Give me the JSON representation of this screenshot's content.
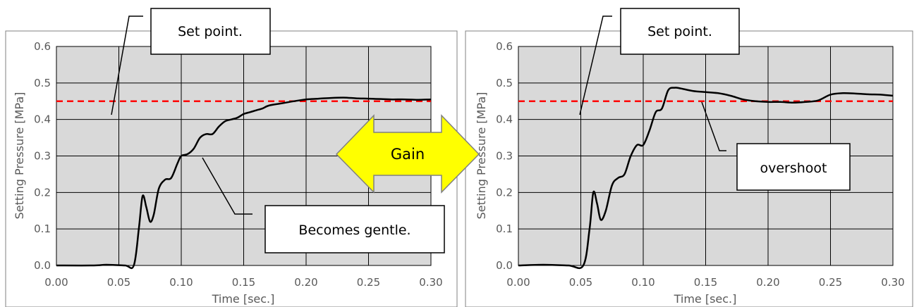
{
  "arrow": {
    "label": "Gain"
  },
  "chart_data": [
    {
      "type": "line",
      "xlabel": "Time [sec.]",
      "ylabel": "Setting Pressure [MPa]",
      "xlim": [
        0.0,
        0.3
      ],
      "ylim": [
        0.0,
        0.6
      ],
      "x_ticks": [
        "0.00",
        "0.05",
        "0.10",
        "0.15",
        "0.20",
        "0.25",
        "0.30"
      ],
      "y_ticks": [
        "0.0",
        "0.1",
        "0.2",
        "0.3",
        "0.4",
        "0.5",
        "0.6"
      ],
      "grid": true,
      "plot_background": "#d9d9d9",
      "setpoint": {
        "y": 0.45,
        "color": "#ff0000",
        "style": "dashed"
      },
      "series": [
        {
          "color": "#000000",
          "points": [
            [
              0.0,
              0.0
            ],
            [
              0.03,
              0.0
            ],
            [
              0.04,
              0.002
            ],
            [
              0.055,
              0.0
            ],
            [
              0.062,
              0.0
            ],
            [
              0.066,
              0.1
            ],
            [
              0.069,
              0.19
            ],
            [
              0.072,
              0.16
            ],
            [
              0.075,
              0.12
            ],
            [
              0.078,
              0.14
            ],
            [
              0.082,
              0.21
            ],
            [
              0.087,
              0.235
            ],
            [
              0.092,
              0.24
            ],
            [
              0.097,
              0.28
            ],
            [
              0.1,
              0.3
            ],
            [
              0.105,
              0.305
            ],
            [
              0.11,
              0.32
            ],
            [
              0.115,
              0.35
            ],
            [
              0.12,
              0.36
            ],
            [
              0.125,
              0.36
            ],
            [
              0.13,
              0.38
            ],
            [
              0.135,
              0.395
            ],
            [
              0.14,
              0.4
            ],
            [
              0.145,
              0.405
            ],
            [
              0.15,
              0.415
            ],
            [
              0.155,
              0.42
            ],
            [
              0.16,
              0.425
            ],
            [
              0.165,
              0.43
            ],
            [
              0.17,
              0.438
            ],
            [
              0.18,
              0.444
            ],
            [
              0.19,
              0.45
            ],
            [
              0.2,
              0.455
            ],
            [
              0.21,
              0.457
            ],
            [
              0.22,
              0.459
            ],
            [
              0.23,
              0.46
            ],
            [
              0.24,
              0.458
            ],
            [
              0.25,
              0.457
            ],
            [
              0.26,
              0.456
            ],
            [
              0.27,
              0.455
            ],
            [
              0.28,
              0.455
            ],
            [
              0.29,
              0.454
            ],
            [
              0.3,
              0.455
            ]
          ]
        }
      ],
      "annotations": [
        {
          "text": "Set point.",
          "target": [
            0.03,
            0.45
          ]
        },
        {
          "text": "Becomes gentle.",
          "target": [
            0.105,
            0.3
          ]
        }
      ]
    },
    {
      "type": "line",
      "xlabel": "Time [sec.]",
      "ylabel": "Setting Pressure [MPa]",
      "xlim": [
        0.0,
        0.3
      ],
      "ylim": [
        0.0,
        0.6
      ],
      "x_ticks": [
        "0.00",
        "0.05",
        "0.10",
        "0.15",
        "0.20",
        "0.25",
        "0.30"
      ],
      "y_ticks": [
        "0.0",
        "0.1",
        "0.2",
        "0.3",
        "0.4",
        "0.5",
        "0.6"
      ],
      "grid": true,
      "plot_background": "#d9d9d9",
      "setpoint": {
        "y": 0.45,
        "color": "#ff0000",
        "style": "dashed"
      },
      "series": [
        {
          "color": "#000000",
          "points": [
            [
              0.0,
              0.0
            ],
            [
              0.02,
              0.002
            ],
            [
              0.04,
              0.0
            ],
            [
              0.052,
              0.0
            ],
            [
              0.057,
              0.1
            ],
            [
              0.06,
              0.2
            ],
            [
              0.063,
              0.17
            ],
            [
              0.066,
              0.125
            ],
            [
              0.07,
              0.15
            ],
            [
              0.075,
              0.22
            ],
            [
              0.08,
              0.24
            ],
            [
              0.085,
              0.25
            ],
            [
              0.09,
              0.3
            ],
            [
              0.095,
              0.33
            ],
            [
              0.1,
              0.33
            ],
            [
              0.105,
              0.37
            ],
            [
              0.11,
              0.42
            ],
            [
              0.115,
              0.43
            ],
            [
              0.12,
              0.48
            ],
            [
              0.125,
              0.487
            ],
            [
              0.13,
              0.485
            ],
            [
              0.14,
              0.478
            ],
            [
              0.15,
              0.475
            ],
            [
              0.16,
              0.472
            ],
            [
              0.17,
              0.465
            ],
            [
              0.18,
              0.455
            ],
            [
              0.19,
              0.45
            ],
            [
              0.2,
              0.448
            ],
            [
              0.21,
              0.448
            ],
            [
              0.22,
              0.446
            ],
            [
              0.23,
              0.448
            ],
            [
              0.24,
              0.452
            ],
            [
              0.25,
              0.468
            ],
            [
              0.26,
              0.472
            ],
            [
              0.27,
              0.471
            ],
            [
              0.28,
              0.469
            ],
            [
              0.29,
              0.468
            ],
            [
              0.3,
              0.465
            ]
          ]
        }
      ],
      "annotations": [
        {
          "text": "Set point.",
          "target": [
            0.03,
            0.45
          ]
        },
        {
          "text": "overshoot",
          "target": [
            0.13,
            0.48
          ]
        }
      ]
    }
  ]
}
